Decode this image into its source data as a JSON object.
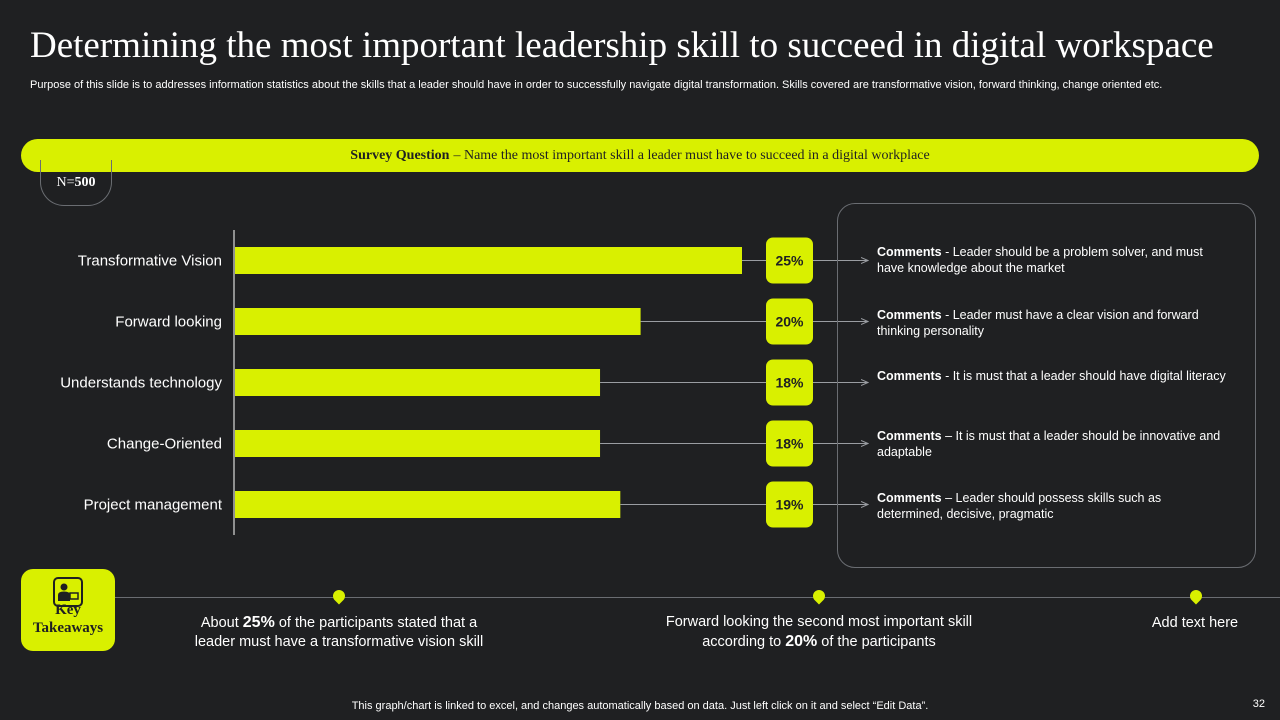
{
  "title": "Determining the most important leadership skill to succeed in digital workspace",
  "subtitle": "Purpose of this slide is to addresses information statistics about the skills that a leader should have in order to successfully navigate digital transformation. Skills covered are transformative vision, forward thinking, change oriented etc.",
  "survey": {
    "label": "Survey Question",
    "question": "– Name the most important skill a leader must have to succeed in a digital workplace"
  },
  "sample": {
    "n_prefix": "N=",
    "n_value": "500"
  },
  "chart_data": {
    "type": "bar",
    "orientation": "horizontal",
    "categories": [
      "Transformative Vision",
      "Forward looking",
      "Understands technology",
      "Change-Oriented",
      "Project management"
    ],
    "values": [
      25,
      20,
      18,
      18,
      19
    ],
    "value_labels": [
      "25%",
      "20%",
      "18%",
      "18%",
      "19%"
    ],
    "xlim": [
      0,
      25
    ],
    "bar_color": "#d9f000"
  },
  "comments": [
    {
      "label": "Comments",
      "text": " - Leader should be a problem solver, and must have knowledge about the market"
    },
    {
      "label": "Comments",
      "text": " - Leader must have a clear vision and forward thinking personality"
    },
    {
      "label": "Comments",
      "text": " - It is must that a leader should have digital literacy"
    },
    {
      "label": "Comments",
      "text": " – It is must that a leader should be innovative and adaptable"
    },
    {
      "label": "Comments",
      "text": " – Leader should possess skills such as determined, decisive, pragmatic"
    }
  ],
  "takeaways": {
    "label": "Key Takeaways",
    "icon": "presenter-icon",
    "items": [
      {
        "pre": "About ",
        "highlight": "25%",
        "post": " of the participants stated that a leader must have a transformative vision skill"
      },
      {
        "pre": "Forward looking the second most important skill according to ",
        "highlight": "20%",
        "post": " of the participants"
      },
      {
        "pre": "Add text here",
        "highlight": "",
        "post": ""
      }
    ]
  },
  "footer": "This graph/chart is linked to excel, and changes automatically based on data. Just left click on it and select “Edit Data”.",
  "page_number": "32",
  "colors": {
    "background": "#1f2022",
    "accent": "#d9f000",
    "outline": "#6a6d72"
  }
}
